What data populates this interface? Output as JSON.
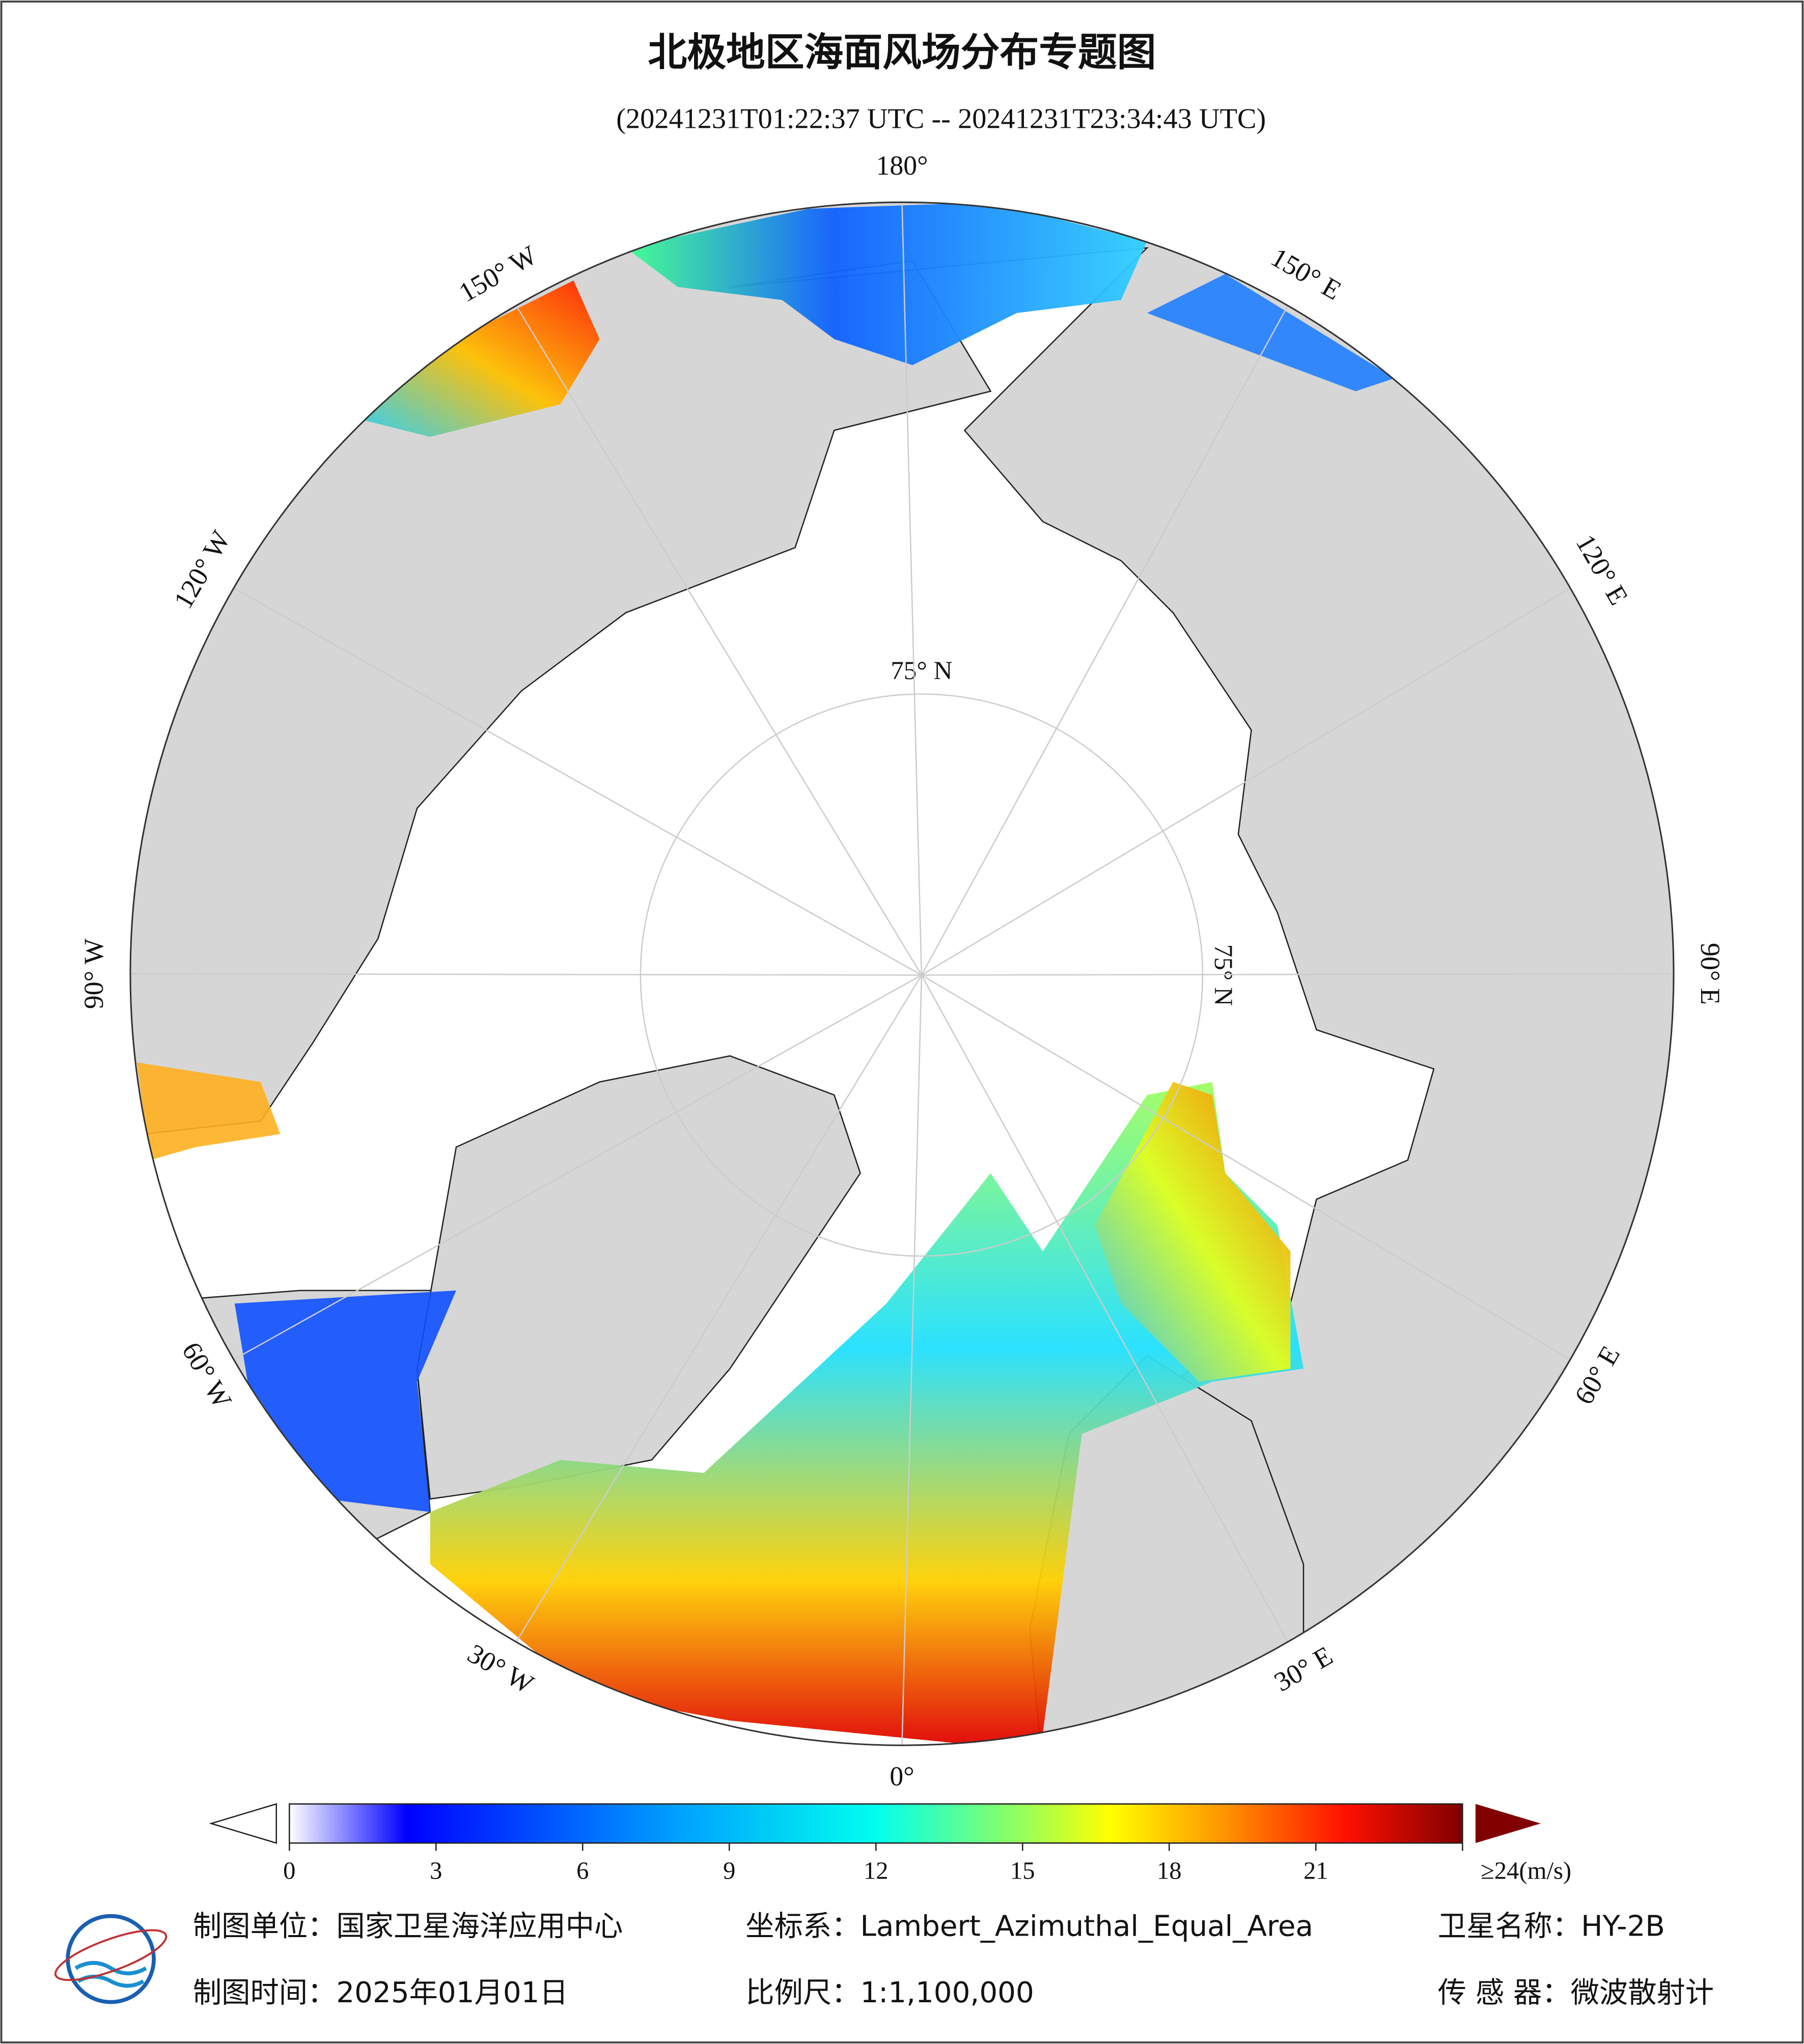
{
  "chart_data": {
    "type": "polar-map",
    "title": "北极地区海面风场分布专题图",
    "subtitle": "(20241231T01:22:37 UTC -- 20241231T23:34:43 UTC)",
    "lon_ticks": [
      {
        "value": 180,
        "label": "180°"
      },
      {
        "value": 150,
        "label": "150° E"
      },
      {
        "value": 120,
        "label": "120° E"
      },
      {
        "value": 90,
        "label": "90° E"
      },
      {
        "value": 60,
        "label": "60° E"
      },
      {
        "value": 30,
        "label": "30° E"
      },
      {
        "value": 0,
        "label": "0°"
      },
      {
        "value": -30,
        "label": "30° W"
      },
      {
        "value": -60,
        "label": "60° W"
      },
      {
        "value": -90,
        "label": "90° W"
      },
      {
        "value": -120,
        "label": "120° W"
      },
      {
        "value": -150,
        "label": "150° W"
      }
    ],
    "lat_ticks": [
      {
        "value": 75,
        "label": "75° N"
      }
    ],
    "colorbar": {
      "lim": [
        0,
        24
      ],
      "ticks": [
        0,
        3,
        6,
        9,
        12,
        15,
        18,
        21,
        {
          "value": 24,
          "label": "≥24(m/s)"
        }
      ]
    },
    "footer": [
      "制图单位：国家卫星海洋应用中心",
      "坐标系：Lambert_Azimuthal_Equal_Area",
      "卫星名称：HY-2B",
      "制图时间：2025年01月01日",
      "比例尺：1:1,100,000",
      "传 感 器：微波散射计"
    ]
  }
}
